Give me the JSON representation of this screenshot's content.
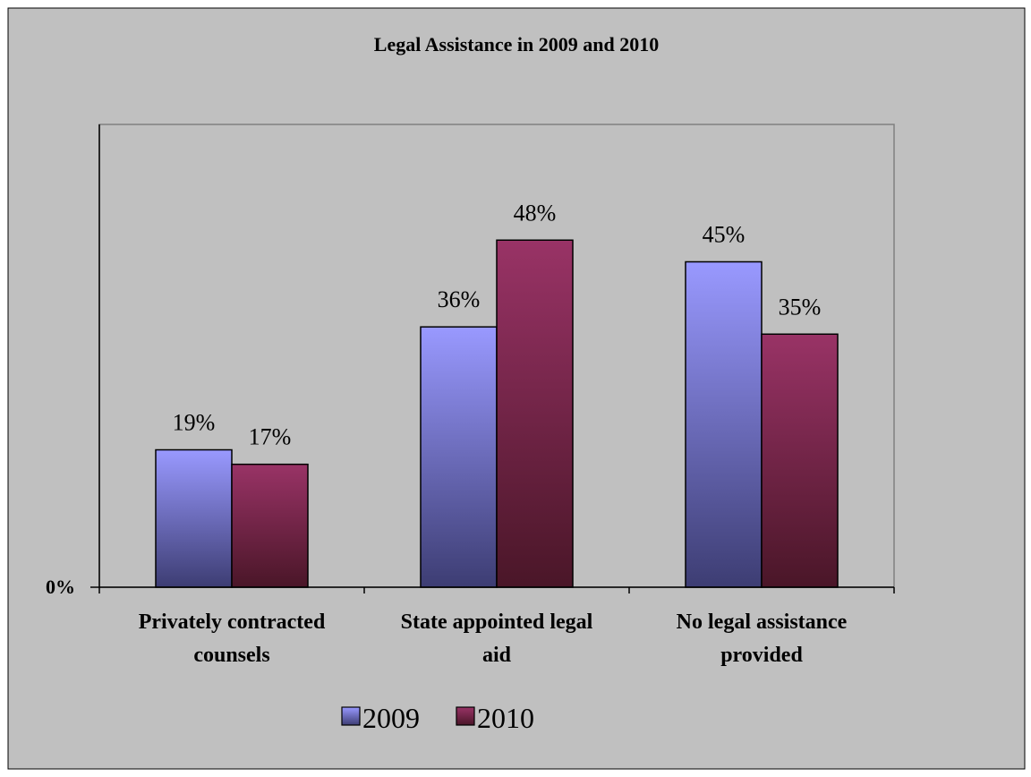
{
  "chart_data": {
    "type": "bar",
    "title": "Legal Assistance in 2009 and 2010",
    "categories": [
      [
        "Privately contracted",
        "counsels"
      ],
      [
        "State appointed legal",
        "aid"
      ],
      [
        "No legal assistance",
        "provided"
      ]
    ],
    "series": [
      {
        "name": "2009",
        "values": [
          19,
          36,
          45
        ],
        "color": "#9999ff",
        "color_dark": "#3d3d73"
      },
      {
        "name": "2010",
        "values": [
          17,
          48,
          35
        ],
        "color": "#993366",
        "color_dark": "#4a1628"
      }
    ],
    "data_labels": [
      [
        "19%",
        "36%",
        "45%"
      ],
      [
        "17%",
        "48%",
        "35%"
      ]
    ],
    "y_tick_label": "0%",
    "ylim": [
      0,
      64
    ],
    "legend_position": "bottom",
    "background": "#c0c0c0",
    "grid": false
  }
}
